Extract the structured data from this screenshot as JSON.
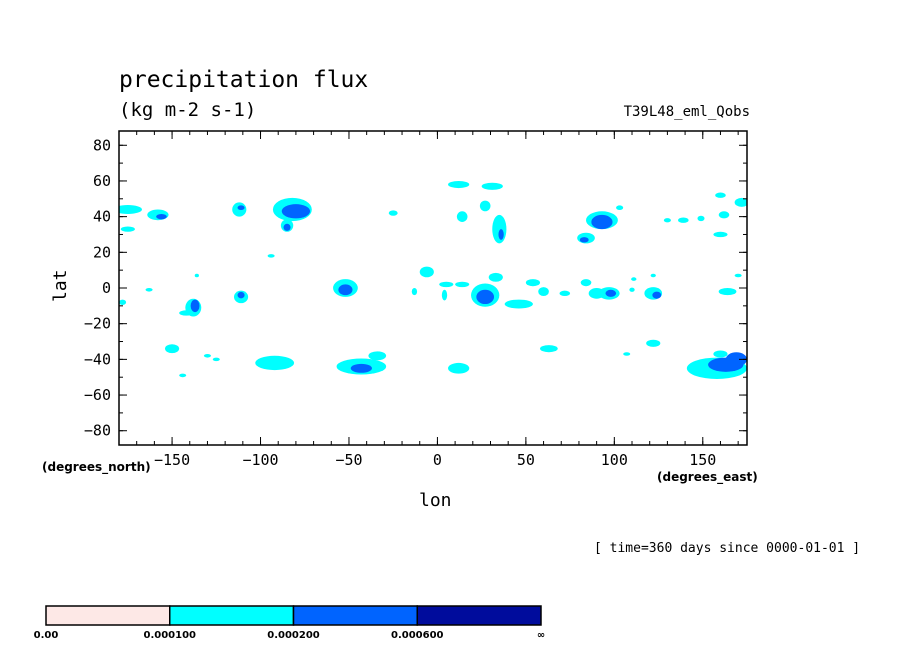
{
  "chart_data": {
    "type": "contour-map",
    "title": "precipitation flux",
    "subtitle": "(kg m-2 s-1)",
    "run_label": "T39L48_eml_Qobs",
    "xlabel": "lon",
    "ylabel": "lat",
    "xunit_label": "(degrees_east)",
    "yunit_label": "(degrees_north)",
    "timestamp": "[ time=360 days since 0000-01-01 ]",
    "xlim": [
      -180,
      175
    ],
    "ylim": [
      -88,
      88
    ],
    "xticks": [
      -150,
      -100,
      -50,
      0,
      50,
      100,
      150
    ],
    "yticks": [
      80,
      60,
      40,
      20,
      0,
      -20,
      -40,
      -60,
      -80
    ],
    "levels": [
      0.0,
      0.0001,
      0.0002,
      0.0006
    ],
    "level_labels": [
      "0.00",
      "0.000100",
      "0.000200",
      "0.000600",
      "∞"
    ],
    "level_colors": [
      "#fde8e6",
      "#00ffff",
      "#0064ff",
      "#000c9c"
    ],
    "cells": [
      {
        "lon": -175,
        "lat": 44,
        "rx": 8,
        "ry": 2.5,
        "level": 1
      },
      {
        "lon": -158,
        "lat": 41,
        "rx": 6,
        "ry": 3,
        "level": 1
      },
      {
        "lon": -156,
        "lat": 40,
        "rx": 3,
        "ry": 1.5,
        "level": 2
      },
      {
        "lon": -175,
        "lat": 33,
        "rx": 4,
        "ry": 1.5,
        "level": 1
      },
      {
        "lon": -112,
        "lat": 44,
        "rx": 4,
        "ry": 4,
        "level": 1
      },
      {
        "lon": -111,
        "lat": 45,
        "rx": 2,
        "ry": 1.3,
        "level": 2
      },
      {
        "lon": -82,
        "lat": 44,
        "rx": 11,
        "ry": 6.5,
        "level": 1
      },
      {
        "lon": -80,
        "lat": 43,
        "rx": 8,
        "ry": 4,
        "level": 2
      },
      {
        "lon": -85,
        "lat": 35,
        "rx": 3.5,
        "ry": 3.5,
        "level": 1
      },
      {
        "lon": -85,
        "lat": 34,
        "rx": 2,
        "ry": 2,
        "level": 2
      },
      {
        "lon": -94,
        "lat": 18,
        "rx": 2,
        "ry": 1,
        "level": 1
      },
      {
        "lon": -25,
        "lat": 42,
        "rx": 2.5,
        "ry": 1.5,
        "level": 1
      },
      {
        "lon": 12,
        "lat": 58,
        "rx": 6,
        "ry": 2,
        "level": 1
      },
      {
        "lon": 31,
        "lat": 57,
        "rx": 6,
        "ry": 2,
        "level": 1
      },
      {
        "lon": 14,
        "lat": 40,
        "rx": 3,
        "ry": 3,
        "level": 1
      },
      {
        "lon": 27,
        "lat": 46,
        "rx": 3,
        "ry": 3,
        "level": 1
      },
      {
        "lon": 35,
        "lat": 33,
        "rx": 4,
        "ry": 8,
        "level": 1
      },
      {
        "lon": 36,
        "lat": 30,
        "rx": 1.5,
        "ry": 3,
        "level": 2
      },
      {
        "lon": 93,
        "lat": 38,
        "rx": 9,
        "ry": 5,
        "level": 1
      },
      {
        "lon": 93,
        "lat": 37,
        "rx": 6,
        "ry": 4,
        "level": 2
      },
      {
        "lon": 84,
        "lat": 28,
        "rx": 5,
        "ry": 3,
        "level": 1
      },
      {
        "lon": 83,
        "lat": 27,
        "rx": 2.5,
        "ry": 1.5,
        "level": 2
      },
      {
        "lon": 103,
        "lat": 45,
        "rx": 2,
        "ry": 1.3,
        "level": 1
      },
      {
        "lon": 130,
        "lat": 38,
        "rx": 2,
        "ry": 1.2,
        "level": 1
      },
      {
        "lon": 139,
        "lat": 38,
        "rx": 3,
        "ry": 1.5,
        "level": 1
      },
      {
        "lon": 149,
        "lat": 39,
        "rx": 2,
        "ry": 1.5,
        "level": 1
      },
      {
        "lon": 162,
        "lat": 41,
        "rx": 3,
        "ry": 2,
        "level": 1
      },
      {
        "lon": 160,
        "lat": 52,
        "rx": 3,
        "ry": 1.5,
        "level": 1
      },
      {
        "lon": 172,
        "lat": 48,
        "rx": 4,
        "ry": 2.5,
        "level": 1
      },
      {
        "lon": 160,
        "lat": 30,
        "rx": 4,
        "ry": 1.5,
        "level": 1
      },
      {
        "lon": -138,
        "lat": -11,
        "rx": 4.5,
        "ry": 5,
        "level": 1
      },
      {
        "lon": -137,
        "lat": -10,
        "rx": 2.5,
        "ry": 3.5,
        "level": 2
      },
      {
        "lon": -142,
        "lat": -14,
        "rx": 4,
        "ry": 1.5,
        "level": 1
      },
      {
        "lon": -163,
        "lat": -1,
        "rx": 2,
        "ry": 1,
        "level": 1
      },
      {
        "lon": -111,
        "lat": -5,
        "rx": 4,
        "ry": 3.5,
        "level": 1
      },
      {
        "lon": -111,
        "lat": -4,
        "rx": 2,
        "ry": 1.8,
        "level": 2
      },
      {
        "lon": -136,
        "lat": 7,
        "rx": 1.2,
        "ry": 1,
        "level": 1
      },
      {
        "lon": -52,
        "lat": 0,
        "rx": 7,
        "ry": 5,
        "level": 1
      },
      {
        "lon": -52,
        "lat": -1,
        "rx": 4,
        "ry": 3,
        "level": 2
      },
      {
        "lon": -13,
        "lat": -2,
        "rx": 1.5,
        "ry": 2,
        "level": 1
      },
      {
        "lon": -6,
        "lat": 9,
        "rx": 4,
        "ry": 3,
        "level": 1
      },
      {
        "lon": 5,
        "lat": 2,
        "rx": 4,
        "ry": 1.5,
        "level": 1
      },
      {
        "lon": 14,
        "lat": 2,
        "rx": 4,
        "ry": 1.5,
        "level": 1
      },
      {
        "lon": 4,
        "lat": -4,
        "rx": 1.5,
        "ry": 3,
        "level": 1
      },
      {
        "lon": 27,
        "lat": -4,
        "rx": 8,
        "ry": 6.5,
        "level": 1
      },
      {
        "lon": 27,
        "lat": -5,
        "rx": 5,
        "ry": 4,
        "level": 2
      },
      {
        "lon": 33,
        "lat": 6,
        "rx": 4,
        "ry": 2.5,
        "level": 1
      },
      {
        "lon": 46,
        "lat": -9,
        "rx": 8,
        "ry": 2.5,
        "level": 1
      },
      {
        "lon": 54,
        "lat": 3,
        "rx": 4,
        "ry": 2,
        "level": 1
      },
      {
        "lon": 60,
        "lat": -2,
        "rx": 3,
        "ry": 2.5,
        "level": 1
      },
      {
        "lon": 72,
        "lat": -3,
        "rx": 3,
        "ry": 1.5,
        "level": 1
      },
      {
        "lon": 84,
        "lat": 3,
        "rx": 3,
        "ry": 2,
        "level": 1
      },
      {
        "lon": 90,
        "lat": -3,
        "rx": 4.5,
        "ry": 3,
        "level": 1
      },
      {
        "lon": 97,
        "lat": -3,
        "rx": 6,
        "ry": 3.5,
        "level": 1
      },
      {
        "lon": 98,
        "lat": -3,
        "rx": 3,
        "ry": 2,
        "level": 2
      },
      {
        "lon": 111,
        "lat": 5,
        "rx": 1.5,
        "ry": 1,
        "level": 1
      },
      {
        "lon": 110,
        "lat": -1,
        "rx": 1.5,
        "ry": 1.2,
        "level": 1
      },
      {
        "lon": 122,
        "lat": 7,
        "rx": 1.5,
        "ry": 1,
        "level": 1
      },
      {
        "lon": 122,
        "lat": -3,
        "rx": 5,
        "ry": 3.5,
        "level": 1
      },
      {
        "lon": 124,
        "lat": -4,
        "rx": 2.5,
        "ry": 2,
        "level": 2
      },
      {
        "lon": 164,
        "lat": -2,
        "rx": 5,
        "ry": 2,
        "level": 1
      },
      {
        "lon": 170,
        "lat": 7,
        "rx": 2,
        "ry": 1,
        "level": 1
      },
      {
        "lon": -178,
        "lat": -8,
        "rx": 2,
        "ry": 1.5,
        "level": 1
      },
      {
        "lon": -150,
        "lat": -34,
        "rx": 4,
        "ry": 2.5,
        "level": 1
      },
      {
        "lon": -130,
        "lat": -38,
        "rx": 2,
        "ry": 1,
        "level": 1
      },
      {
        "lon": -125,
        "lat": -40,
        "rx": 2,
        "ry": 1,
        "level": 1
      },
      {
        "lon": -92,
        "lat": -42,
        "rx": 11,
        "ry": 4,
        "level": 1
      },
      {
        "lon": -43,
        "lat": -44,
        "rx": 14,
        "ry": 4.5,
        "level": 1
      },
      {
        "lon": -43,
        "lat": -45,
        "rx": 6,
        "ry": 2.5,
        "level": 2
      },
      {
        "lon": -34,
        "lat": -38,
        "rx": 5,
        "ry": 2.5,
        "level": 1
      },
      {
        "lon": -144,
        "lat": -49,
        "rx": 2,
        "ry": 1,
        "level": 1
      },
      {
        "lon": 12,
        "lat": -45,
        "rx": 6,
        "ry": 3,
        "level": 1
      },
      {
        "lon": 63,
        "lat": -34,
        "rx": 5,
        "ry": 2,
        "level": 1
      },
      {
        "lon": 107,
        "lat": -37,
        "rx": 2,
        "ry": 1,
        "level": 1
      },
      {
        "lon": 122,
        "lat": -31,
        "rx": 4,
        "ry": 2,
        "level": 1
      },
      {
        "lon": 158,
        "lat": -45,
        "rx": 17,
        "ry": 6,
        "level": 1
      },
      {
        "lon": 163,
        "lat": -43,
        "rx": 10,
        "ry": 4,
        "level": 2
      },
      {
        "lon": 169,
        "lat": -40,
        "rx": 6,
        "ry": 4,
        "level": 2
      },
      {
        "lon": 160,
        "lat": -37,
        "rx": 4,
        "ry": 2,
        "level": 1
      }
    ]
  }
}
